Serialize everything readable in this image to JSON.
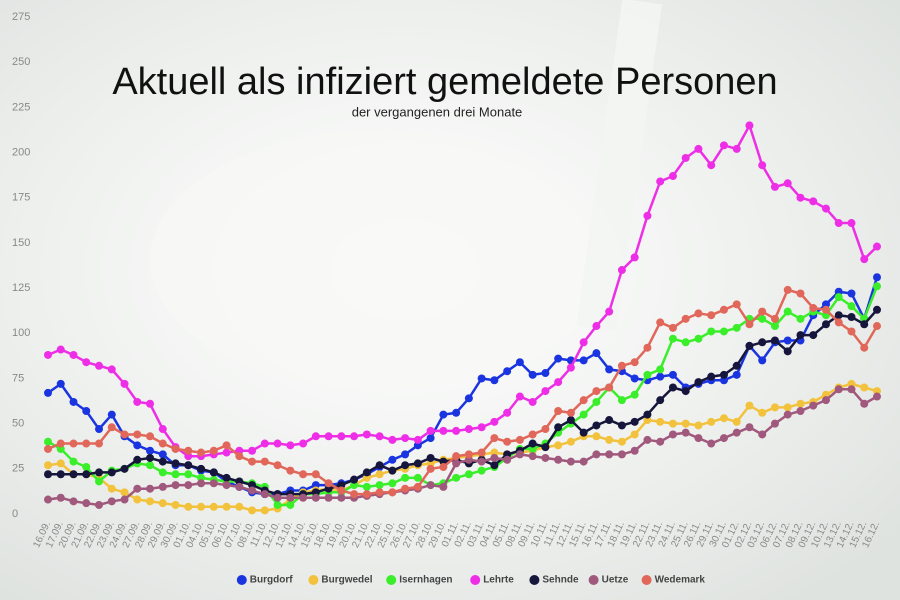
{
  "chart_data": {
    "type": "line",
    "title": "Aktuell als infiziert gemeldete Personen",
    "subtitle": "der vergangenen drei Monate",
    "categories": [
      "16.09.",
      "17.09.",
      "20.09.",
      "21.09.",
      "22.09.",
      "23.09.",
      "24.09.",
      "27.09.",
      "28.09.",
      "29.09.",
      "30.09.",
      "01.10.",
      "04.10.",
      "05.10.",
      "06.10.",
      "07.10.",
      "08.10.",
      "11.10.",
      "12.10.",
      "13.10.",
      "14.10.",
      "15.10.",
      "18.10.",
      "19.10.",
      "20.10.",
      "21.10.",
      "22.10.",
      "25.10.",
      "26.10.",
      "27.10.",
      "28.10.",
      "29.10.",
      "01.11.",
      "02.11.",
      "03.11.",
      "04.11.",
      "05.11.",
      "08.11.",
      "09.11.",
      "10.11.",
      "11.11.",
      "12.11.",
      "15.11.",
      "16.11.",
      "17.11.",
      "18.11.",
      "19.11.",
      "22.11.",
      "23.11.",
      "24.11.",
      "25.11.",
      "26.11.",
      "29.11.",
      "30.11.",
      "01.12.",
      "02.12.",
      "03.12.",
      "06.12.",
      "07.12.",
      "08.12.",
      "09.12.",
      "10.12.",
      "13.12.",
      "14.12.",
      "15.12.",
      "16.12."
    ],
    "series": [
      {
        "name": "Burgdorf",
        "color": "#1a35e0",
        "values": [
          67,
          72,
          62,
          57,
          47,
          55,
          43,
          38,
          35,
          33,
          27,
          27,
          24,
          23,
          18,
          15,
          12,
          11,
          11,
          13,
          13,
          16,
          16,
          17,
          19,
          22,
          26,
          30,
          33,
          38,
          42,
          55,
          56,
          64,
          75,
          74,
          79,
          84,
          77,
          78,
          86,
          85,
          85,
          89,
          80,
          79,
          75,
          74,
          76,
          77,
          70,
          72,
          74,
          74,
          77,
          93,
          85,
          95,
          96,
          96,
          110,
          116,
          123,
          122,
          108,
          131
        ]
      },
      {
        "name": "Burgwedel",
        "color": "#f2c23c",
        "values": [
          27,
          28,
          22,
          22,
          20,
          14,
          12,
          8,
          7,
          6,
          5,
          4,
          4,
          4,
          4,
          4,
          2,
          2,
          3,
          8,
          12,
          13,
          14,
          13,
          16,
          20,
          22,
          24,
          25,
          27,
          28,
          30,
          31,
          32,
          33,
          34,
          33,
          34,
          35,
          37,
          38,
          40,
          43,
          43,
          41,
          40,
          44,
          52,
          51,
          50,
          50,
          49,
          51,
          53,
          51,
          60,
          56,
          59,
          59,
          61,
          62,
          66,
          70,
          72,
          70,
          68
        ]
      },
      {
        "name": "Isernhagen",
        "color": "#3aee2a",
        "values": [
          40,
          36,
          29,
          26,
          18,
          24,
          25,
          28,
          27,
          23,
          22,
          22,
          20,
          19,
          18,
          18,
          17,
          15,
          5,
          5,
          11,
          11,
          12,
          12,
          16,
          15,
          16,
          17,
          20,
          20,
          16,
          17,
          20,
          22,
          24,
          26,
          31,
          36,
          36,
          39,
          45,
          50,
          55,
          62,
          70,
          63,
          66,
          77,
          80,
          97,
          95,
          97,
          101,
          101,
          103,
          108,
          108,
          104,
          112,
          108,
          112,
          110,
          120,
          115,
          108,
          126
        ]
      },
      {
        "name": "Lehrte",
        "color": "#ee2ee6",
        "values": [
          88,
          91,
          88,
          84,
          82,
          80,
          72,
          62,
          61,
          47,
          37,
          32,
          32,
          33,
          34,
          35,
          35,
          39,
          39,
          38,
          39,
          43,
          43,
          43,
          43,
          44,
          43,
          41,
          42,
          41,
          46,
          46,
          46,
          47,
          48,
          51,
          56,
          65,
          62,
          68,
          73,
          81,
          95,
          104,
          112,
          135,
          142,
          165,
          184,
          187,
          197,
          202,
          193,
          204,
          202,
          215,
          193,
          181,
          183,
          175,
          173,
          169,
          161,
          161,
          141,
          148
        ]
      },
      {
        "name": "Sehnde",
        "color": "#16163c",
        "values": [
          22,
          22,
          22,
          22,
          23,
          23,
          25,
          30,
          31,
          29,
          28,
          27,
          25,
          23,
          20,
          18,
          16,
          13,
          11,
          11,
          11,
          12,
          14,
          16,
          19,
          23,
          27,
          24,
          27,
          28,
          31,
          29,
          30,
          28,
          30,
          27,
          33,
          35,
          39,
          37,
          48,
          52,
          45,
          49,
          52,
          49,
          51,
          55,
          63,
          70,
          68,
          73,
          76,
          77,
          82,
          93,
          95,
          96,
          90,
          99,
          99,
          105,
          110,
          109,
          105,
          113
        ]
      },
      {
        "name": "Uetze",
        "color": "#a0587c",
        "values": [
          8,
          9,
          7,
          6,
          5,
          7,
          8,
          14,
          14,
          15,
          16,
          16,
          17,
          17,
          16,
          15,
          13,
          11,
          9,
          9,
          9,
          9,
          9,
          9,
          9,
          10,
          11,
          12,
          13,
          14,
          16,
          15,
          28,
          30,
          29,
          31,
          30,
          33,
          32,
          31,
          30,
          29,
          29,
          33,
          33,
          33,
          35,
          41,
          40,
          44,
          45,
          42,
          39,
          42,
          45,
          48,
          44,
          50,
          55,
          57,
          60,
          63,
          69,
          69,
          61,
          65
        ]
      },
      {
        "name": "Wedemark",
        "color": "#e0675a",
        "values": [
          36,
          39,
          39,
          39,
          39,
          48,
          44,
          44,
          43,
          39,
          36,
          35,
          34,
          35,
          38,
          32,
          29,
          29,
          27,
          24,
          22,
          22,
          17,
          13,
          11,
          11,
          12,
          12,
          14,
          15,
          25,
          26,
          32,
          33,
          34,
          42,
          40,
          41,
          44,
          47,
          57,
          56,
          63,
          68,
          70,
          82,
          84,
          92,
          106,
          103,
          108,
          111,
          110,
          113,
          116,
          105,
          112,
          108,
          124,
          122,
          114,
          113,
          106,
          101,
          92,
          104
        ]
      }
    ],
    "ylim": [
      0,
      275
    ],
    "yticks": [
      0,
      25,
      50,
      75,
      100,
      125,
      150,
      175,
      200,
      225,
      250,
      275
    ]
  }
}
